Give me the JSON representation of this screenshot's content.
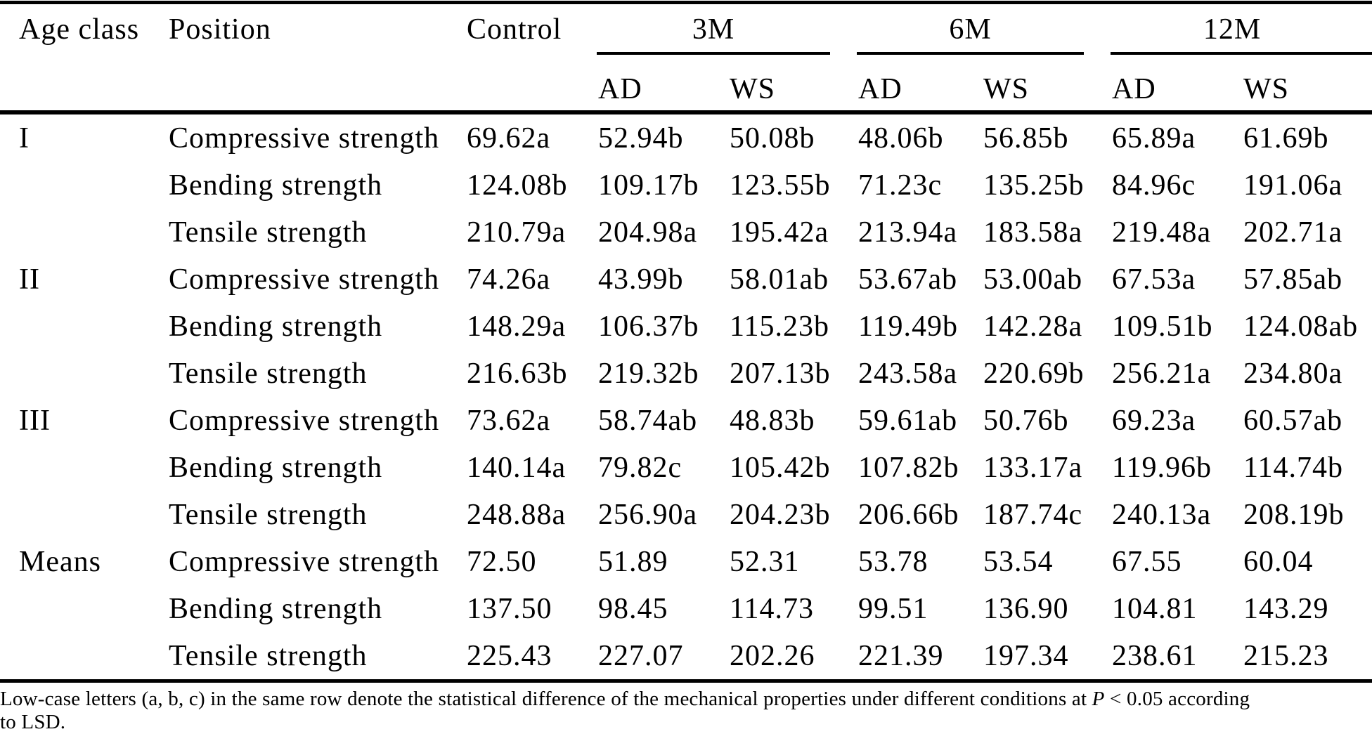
{
  "header": {
    "age_class": "Age class",
    "position": "Position",
    "control": "Control",
    "groups": [
      "3M",
      "6M",
      "12M"
    ],
    "sub": {
      "ad": "AD",
      "ws": "WS"
    }
  },
  "rows": [
    {
      "age_class": "I",
      "position": "Compressive strength",
      "values": [
        "69.62a",
        "52.94b",
        "50.08b",
        "48.06b",
        "56.85b",
        "65.89a",
        "61.69b"
      ]
    },
    {
      "age_class": "",
      "position": "Bending strength",
      "values": [
        "124.08b",
        "109.17b",
        "123.55b",
        "71.23c",
        "135.25b",
        "84.96c",
        "191.06a"
      ]
    },
    {
      "age_class": "",
      "position": "Tensile strength",
      "values": [
        "210.79a",
        "204.98a",
        "195.42a",
        "213.94a",
        "183.58a",
        "219.48a",
        "202.71a"
      ]
    },
    {
      "age_class": "II",
      "position": "Compressive strength",
      "values": [
        "74.26a",
        "43.99b",
        "58.01ab",
        "53.67ab",
        "53.00ab",
        "67.53a",
        "57.85ab"
      ]
    },
    {
      "age_class": "",
      "position": "Bending strength",
      "values": [
        "148.29a",
        "106.37b",
        "115.23b",
        "119.49b",
        "142.28a",
        "109.51b",
        "124.08ab"
      ]
    },
    {
      "age_class": "",
      "position": "Tensile strength",
      "values": [
        "216.63b",
        "219.32b",
        "207.13b",
        "243.58a",
        "220.69b",
        "256.21a",
        "234.80a"
      ]
    },
    {
      "age_class": "III",
      "position": "Compressive strength",
      "values": [
        "73.62a",
        "58.74ab",
        "48.83b",
        "59.61ab",
        "50.76b",
        "69.23a",
        "60.57ab"
      ]
    },
    {
      "age_class": "",
      "position": "Bending strength",
      "values": [
        "140.14a",
        "79.82c",
        "105.42b",
        "107.82b",
        "133.17a",
        "119.96b",
        "114.74b"
      ]
    },
    {
      "age_class": "",
      "position": "Tensile strength",
      "values": [
        "248.88a",
        "256.90a",
        "204.23b",
        "206.66b",
        "187.74c",
        "240.13a",
        "208.19b"
      ]
    },
    {
      "age_class": "Means",
      "position": "Compressive strength",
      "values": [
        "72.50",
        "51.89",
        "52.31",
        "53.78",
        "53.54",
        "67.55",
        "60.04"
      ]
    },
    {
      "age_class": "",
      "position": "Bending strength",
      "values": [
        "137.50",
        "98.45",
        "114.73",
        "99.51",
        "136.90",
        "104.81",
        "143.29"
      ]
    },
    {
      "age_class": "",
      "position": "Tensile strength",
      "values": [
        "225.43",
        "227.07",
        "202.26",
        "221.39",
        "197.34",
        "238.61",
        "215.23"
      ]
    }
  ],
  "footnote": {
    "part1": "Low-case letters (a, b, c) in the same row denote the statistical difference of the mechanical properties under different conditions at ",
    "p_italic": "P",
    "part2": " < 0.05 according",
    "part3": "to LSD."
  }
}
